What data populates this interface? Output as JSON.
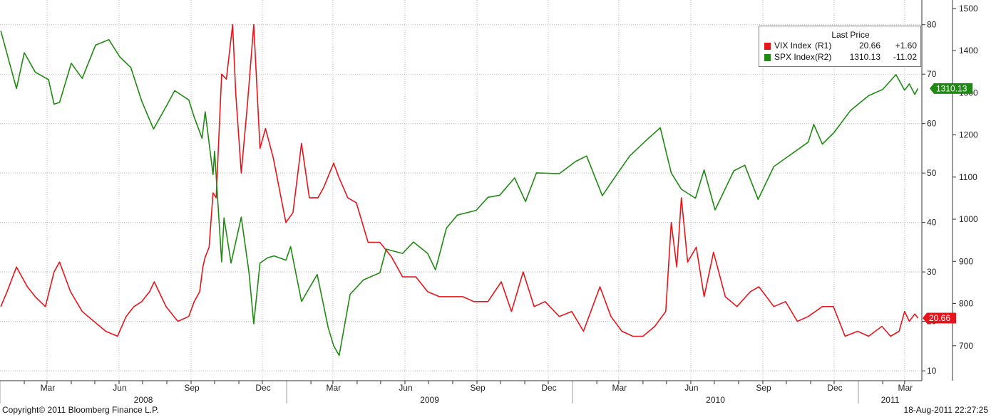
{
  "chart_data": {
    "type": "line",
    "axes": {
      "left_ticks": [
        10,
        20,
        30,
        40,
        50,
        60,
        70,
        80
      ],
      "left_range": [
        8,
        85
      ],
      "right_ticks": [
        700,
        800,
        900,
        1000,
        1100,
        1200,
        1300,
        1400,
        1500
      ],
      "right_range": [
        617,
        1520
      ],
      "months": [
        "Mar",
        "Jun",
        "Sep",
        "Dec",
        "Mar",
        "Jun",
        "Sep",
        "Dec",
        "Mar",
        "Jun",
        "Sep",
        "Dec",
        "Mar"
      ],
      "years": [
        "2008",
        "2009",
        "2010",
        "2011"
      ],
      "grid": true
    },
    "legend": {
      "header": "Last Price",
      "placement": "top-right",
      "entries": [
        {
          "name": "VIX Index",
          "ref": "(R1)",
          "price": "20.66",
          "change": "+1.60",
          "color": "#e8141b"
        },
        {
          "name": "SPX Index",
          "ref": "(R2)",
          "price": "1310.13",
          "change": "-11.02",
          "color": "#1f8a12"
        }
      ]
    },
    "last_value_tags": {
      "vix": "20.66",
      "spx": "1310.13"
    },
    "series": [
      {
        "name": "VIX Index",
        "axis": "R1",
        "color": "#e8141b",
        "points": [
          [
            "2008-01-02",
            23
          ],
          [
            "2008-01-10",
            26
          ],
          [
            "2008-01-22",
            31
          ],
          [
            "2008-02-05",
            27
          ],
          [
            "2008-02-15",
            25
          ],
          [
            "2008-02-28",
            23
          ],
          [
            "2008-03-10",
            30
          ],
          [
            "2008-03-17",
            32
          ],
          [
            "2008-03-31",
            26
          ],
          [
            "2008-04-15",
            22
          ],
          [
            "2008-04-30",
            20
          ],
          [
            "2008-05-15",
            18
          ],
          [
            "2008-05-30",
            17
          ],
          [
            "2008-06-10",
            21
          ],
          [
            "2008-06-20",
            23
          ],
          [
            "2008-06-30",
            24
          ],
          [
            "2008-07-10",
            26
          ],
          [
            "2008-07-16",
            28
          ],
          [
            "2008-07-31",
            23
          ],
          [
            "2008-08-15",
            20
          ],
          [
            "2008-08-29",
            21
          ],
          [
            "2008-09-05",
            24
          ],
          [
            "2008-09-12",
            26
          ],
          [
            "2008-09-16",
            31
          ],
          [
            "2008-09-19",
            33
          ],
          [
            "2008-09-24",
            35
          ],
          [
            "2008-09-29",
            46
          ],
          [
            "2008-10-03",
            45
          ],
          [
            "2008-10-10",
            70
          ],
          [
            "2008-10-16",
            69
          ],
          [
            "2008-10-24",
            80
          ],
          [
            "2008-10-28",
            66
          ],
          [
            "2008-11-04",
            50
          ],
          [
            "2008-11-12",
            64
          ],
          [
            "2008-11-20",
            80
          ],
          [
            "2008-11-28",
            55
          ],
          [
            "2008-12-05",
            59
          ],
          [
            "2008-12-15",
            53
          ],
          [
            "2008-12-31",
            40
          ],
          [
            "2009-01-09",
            42
          ],
          [
            "2009-01-20",
            56
          ],
          [
            "2009-01-30",
            45
          ],
          [
            "2009-02-10",
            45
          ],
          [
            "2009-02-17",
            47
          ],
          [
            "2009-03-02",
            52
          ],
          [
            "2009-03-09",
            49
          ],
          [
            "2009-03-20",
            45
          ],
          [
            "2009-03-31",
            44
          ],
          [
            "2009-04-15",
            36
          ],
          [
            "2009-04-30",
            36
          ],
          [
            "2009-05-15",
            33
          ],
          [
            "2009-05-29",
            29
          ],
          [
            "2009-06-15",
            29
          ],
          [
            "2009-06-30",
            26
          ],
          [
            "2009-07-15",
            25
          ],
          [
            "2009-07-31",
            25
          ],
          [
            "2009-08-14",
            25
          ],
          [
            "2009-08-28",
            24
          ],
          [
            "2009-09-15",
            24
          ],
          [
            "2009-10-02",
            28
          ],
          [
            "2009-10-15",
            22
          ],
          [
            "2009-10-30",
            30
          ],
          [
            "2009-11-13",
            23
          ],
          [
            "2009-11-27",
            24
          ],
          [
            "2009-12-15",
            21
          ],
          [
            "2009-12-31",
            22
          ],
          [
            "2010-01-15",
            18
          ],
          [
            "2010-01-29",
            24
          ],
          [
            "2010-02-05",
            27
          ],
          [
            "2010-02-19",
            21
          ],
          [
            "2010-03-05",
            18
          ],
          [
            "2010-03-19",
            17
          ],
          [
            "2010-04-01",
            17
          ],
          [
            "2010-04-16",
            19
          ],
          [
            "2010-04-30",
            22
          ],
          [
            "2010-05-07",
            40
          ],
          [
            "2010-05-14",
            31
          ],
          [
            "2010-05-20",
            45
          ],
          [
            "2010-05-28",
            32
          ],
          [
            "2010-06-08",
            35
          ],
          [
            "2010-06-18",
            25
          ],
          [
            "2010-06-30",
            34
          ],
          [
            "2010-07-15",
            25
          ],
          [
            "2010-07-30",
            23
          ],
          [
            "2010-08-16",
            26
          ],
          [
            "2010-08-27",
            27
          ],
          [
            "2010-09-15",
            23
          ],
          [
            "2010-09-30",
            24
          ],
          [
            "2010-10-15",
            20
          ],
          [
            "2010-10-29",
            21
          ],
          [
            "2010-11-16",
            23
          ],
          [
            "2010-11-30",
            23
          ],
          [
            "2010-12-15",
            17
          ],
          [
            "2010-12-31",
            18
          ],
          [
            "2011-01-14",
            17
          ],
          [
            "2011-01-31",
            19
          ],
          [
            "2011-02-11",
            17
          ],
          [
            "2011-02-22",
            18
          ],
          [
            "2011-03-01",
            22
          ],
          [
            "2011-03-07",
            20
          ],
          [
            "2011-03-14",
            21.5
          ],
          [
            "2011-03-18",
            20.66
          ]
        ]
      },
      {
        "name": "SPX Index",
        "axis": "R2",
        "color": "#1f8a12",
        "points": [
          [
            "2008-01-02",
            1447
          ],
          [
            "2008-01-22",
            1310
          ],
          [
            "2008-02-01",
            1395
          ],
          [
            "2008-02-15",
            1349
          ],
          [
            "2008-03-03",
            1331
          ],
          [
            "2008-03-10",
            1273
          ],
          [
            "2008-03-17",
            1277
          ],
          [
            "2008-04-01",
            1370
          ],
          [
            "2008-04-15",
            1334
          ],
          [
            "2008-05-02",
            1413
          ],
          [
            "2008-05-19",
            1426
          ],
          [
            "2008-06-02",
            1385
          ],
          [
            "2008-06-16",
            1360
          ],
          [
            "2008-06-30",
            1280
          ],
          [
            "2008-07-15",
            1214
          ],
          [
            "2008-07-31",
            1267
          ],
          [
            "2008-08-11",
            1305
          ],
          [
            "2008-08-29",
            1283
          ],
          [
            "2008-09-05",
            1242
          ],
          [
            "2008-09-15",
            1192
          ],
          [
            "2008-09-19",
            1255
          ],
          [
            "2008-09-29",
            1106
          ],
          [
            "2008-10-01",
            1161
          ],
          [
            "2008-10-10",
            899
          ],
          [
            "2008-10-13",
            1003
          ],
          [
            "2008-10-22",
            896
          ],
          [
            "2008-11-04",
            1005
          ],
          [
            "2008-11-14",
            873
          ],
          [
            "2008-11-20",
            752
          ],
          [
            "2008-11-28",
            896
          ],
          [
            "2008-12-08",
            909
          ],
          [
            "2008-12-16",
            913
          ],
          [
            "2008-12-31",
            903
          ],
          [
            "2009-01-06",
            935
          ],
          [
            "2009-01-20",
            805
          ],
          [
            "2009-02-09",
            869
          ],
          [
            "2009-02-23",
            743
          ],
          [
            "2009-03-02",
            700
          ],
          [
            "2009-03-09",
            677
          ],
          [
            "2009-03-23",
            822
          ],
          [
            "2009-04-09",
            856
          ],
          [
            "2009-04-30",
            873
          ],
          [
            "2009-05-08",
            929
          ],
          [
            "2009-05-29",
            919
          ],
          [
            "2009-06-12",
            946
          ],
          [
            "2009-06-30",
            919
          ],
          [
            "2009-07-10",
            880
          ],
          [
            "2009-07-24",
            979
          ],
          [
            "2009-08-07",
            1010
          ],
          [
            "2009-08-31",
            1021
          ],
          [
            "2009-09-15",
            1052
          ],
          [
            "2009-09-30",
            1057
          ],
          [
            "2009-10-19",
            1098
          ],
          [
            "2009-11-02",
            1042
          ],
          [
            "2009-11-16",
            1110
          ],
          [
            "2009-12-15",
            1108
          ],
          [
            "2010-01-05",
            1137
          ],
          [
            "2010-01-19",
            1150
          ],
          [
            "2010-02-08",
            1056
          ],
          [
            "2010-02-26",
            1105
          ],
          [
            "2010-03-15",
            1150
          ],
          [
            "2010-04-05",
            1187
          ],
          [
            "2010-04-23",
            1217
          ],
          [
            "2010-05-07",
            1110
          ],
          [
            "2010-05-20",
            1071
          ],
          [
            "2010-06-07",
            1050
          ],
          [
            "2010-06-18",
            1117
          ],
          [
            "2010-07-02",
            1022
          ],
          [
            "2010-07-26",
            1115
          ],
          [
            "2010-08-09",
            1128
          ],
          [
            "2010-08-26",
            1047
          ],
          [
            "2010-09-15",
            1125
          ],
          [
            "2010-10-01",
            1146
          ],
          [
            "2010-10-29",
            1183
          ],
          [
            "2010-11-05",
            1225
          ],
          [
            "2010-11-16",
            1178
          ],
          [
            "2010-12-01",
            1206
          ],
          [
            "2010-12-22",
            1258
          ],
          [
            "2011-01-14",
            1293
          ],
          [
            "2011-02-01",
            1308
          ],
          [
            "2011-02-18",
            1343
          ],
          [
            "2011-03-01",
            1306
          ],
          [
            "2011-03-07",
            1321
          ],
          [
            "2011-03-14",
            1296
          ],
          [
            "2011-03-18",
            1310.13
          ]
        ]
      }
    ]
  },
  "footer": {
    "copyright": "Copyright© 2011 Bloomberg Finance L.P.",
    "timestamp": "18-Aug-2011 22:27:25"
  }
}
